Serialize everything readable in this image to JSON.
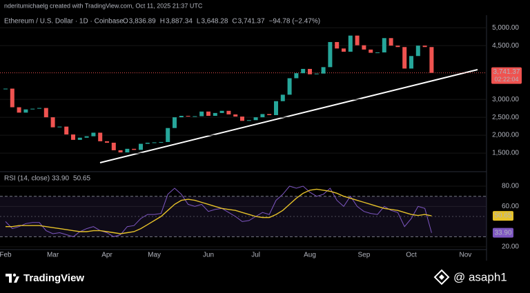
{
  "header": {
    "credit": "nderitumichaelg created with TradingView.com, Oct 11, 2025 21:37 UTC"
  },
  "chart_data": [
    {
      "type": "candlestick",
      "title": "Ethereum / U.S. Dollar · 1D · Coinbase",
      "ohlc": [
        {
          "key": "O",
          "value": "3,836.89"
        },
        {
          "key": "H",
          "value": "3,887.34"
        },
        {
          "key": "L",
          "value": "3,648.28"
        },
        {
          "key": "C",
          "value": "3,741.37"
        }
      ],
      "change": "−94.78 (−2.47%)",
      "up_color": "#26a69a",
      "down_color": "#ef5350",
      "categories": [
        "Feb",
        null,
        null,
        null,
        null,
        null,
        null,
        "Mar",
        null,
        null,
        null,
        null,
        null,
        null,
        null,
        "Apr",
        null,
        null,
        null,
        null,
        null,
        null,
        "May",
        null,
        null,
        null,
        null,
        null,
        null,
        null,
        "Jun",
        null,
        null,
        null,
        null,
        null,
        null,
        "Jul",
        null,
        null,
        null,
        null,
        null,
        null,
        null,
        "Aug",
        null,
        null,
        null,
        null,
        null,
        null,
        null,
        "Sep",
        null,
        null,
        null,
        null,
        null,
        null,
        "Oct",
        null,
        null,
        null,
        null,
        null,
        null,
        null,
        "Nov",
        null
      ],
      "values": [
        3300,
        2780,
        2630,
        2720,
        2740,
        2760,
        2500,
        2220,
        2240,
        2020,
        1870,
        1930,
        1970,
        2070,
        1830,
        1790,
        1580,
        1520,
        1620,
        1590,
        1760,
        1790,
        1800,
        1810,
        2200,
        2500,
        2540,
        2520,
        2530,
        2660,
        2540,
        2620,
        2680,
        2580,
        2520,
        2400,
        2420,
        2500,
        2590,
        2560,
        2950,
        3130,
        3590,
        3730,
        3850,
        3700,
        3720,
        3900,
        4600,
        4420,
        4330,
        4780,
        4510,
        4390,
        4300,
        4310,
        4710,
        4500,
        4460,
        3860,
        4210,
        4500,
        4460,
        3741.37,
        null,
        null,
        null,
        null,
        null,
        null
      ],
      "ylim": [
        1040,
        5350
      ],
      "yticks": [
        {
          "value": 1500,
          "label": "1,500.00"
        },
        {
          "value": 2000,
          "label": "2,000.00"
        },
        {
          "value": 2500,
          "label": "2,500.00"
        },
        {
          "value": 3000,
          "label": "3,000.00"
        },
        {
          "value": 4500,
          "label": "4,500.00"
        },
        {
          "value": 5000,
          "label": "5,000.00"
        }
      ],
      "last_price": {
        "value": 3741.37,
        "label": "3,741.37"
      },
      "countdown": "02:22:04"
    },
    {
      "type": "line",
      "title": "RSI (14, close)",
      "series": [
        {
          "color": "#7e57c2",
          "last_label": {
            "value": 33.9,
            "label": "33.90"
          },
          "values": [
            45,
            38,
            40,
            43,
            44,
            44,
            36,
            33,
            34,
            32,
            30,
            35,
            38,
            40,
            36,
            34,
            30,
            32,
            40,
            41,
            48,
            52,
            52,
            53,
            72,
            78,
            72,
            62,
            60,
            62,
            55,
            57,
            58,
            54,
            50,
            45,
            46,
            50,
            54,
            52,
            66,
            72,
            80,
            78,
            80,
            74,
            70,
            72,
            78,
            66,
            60,
            70,
            60,
            55,
            53,
            52,
            60,
            56,
            54,
            40,
            48,
            60,
            58,
            33.9,
            null,
            null,
            null,
            null,
            null,
            null
          ]
        },
        {
          "color": "#e6c229",
          "last_label": {
            "value": 50.65,
            "label": "50.65"
          },
          "values": [
            40,
            40,
            41,
            41,
            41,
            41,
            40,
            39,
            38,
            37,
            36,
            35,
            35,
            36,
            36,
            35,
            34,
            33,
            34,
            35,
            38,
            42,
            46,
            50,
            56,
            62,
            66,
            67,
            66,
            64,
            62,
            60,
            58,
            57,
            56,
            54,
            52,
            50,
            49,
            49,
            52,
            56,
            62,
            68,
            73,
            76,
            77,
            76,
            75,
            73,
            70,
            68,
            66,
            64,
            62,
            60,
            58,
            57,
            56,
            54,
            52,
            51,
            52,
            50.65,
            null,
            null,
            null,
            null,
            null,
            null
          ]
        }
      ],
      "bands": [
        70,
        30
      ],
      "midline": 50,
      "ylim": [
        17.3,
        92.3
      ],
      "yticks": [
        {
          "value": 20,
          "label": "20.00"
        },
        {
          "value": 60,
          "label": "60.00"
        },
        {
          "value": 80,
          "label": "80.00"
        }
      ]
    }
  ],
  "footer": {
    "brand": "TradingView",
    "handle": "@ asaph1"
  }
}
